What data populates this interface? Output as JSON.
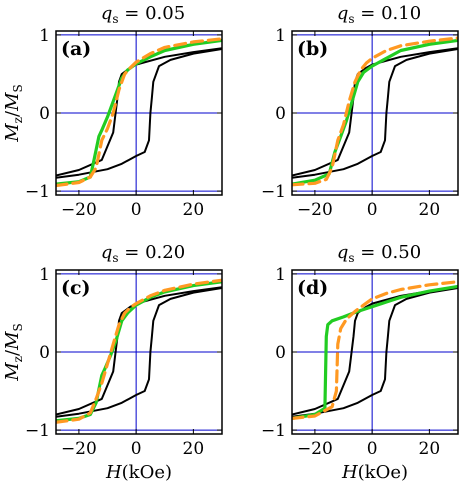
{
  "colors": {
    "frame": "#000000",
    "reference_lines": "#0000cc",
    "black_curve": "#000000",
    "green_curve": "#22cc22",
    "orange_curve": "#ff9922"
  },
  "shared": {
    "ylabel": "M_z/M_S",
    "xlabel": "H(kOe)",
    "xticks": [
      "−20",
      "0",
      "20"
    ],
    "yticks": [
      "−1",
      "0",
      "1"
    ]
  },
  "chart_data": [
    {
      "type": "line",
      "label": "(a)",
      "title": "q_s = 0.05",
      "q_s": "0.05",
      "xlim": [
        -28,
        30
      ],
      "ylim": [
        -1.05,
        1.05
      ],
      "grid": false,
      "reference_lines": {
        "y": [
          0,
          1,
          -1
        ],
        "x": [
          0
        ]
      },
      "series": [
        {
          "color": "black",
          "style": "solid",
          "x": [
            -28,
            -20,
            -12,
            -8,
            -6.5,
            -6,
            -5,
            -2,
            0,
            10,
            20,
            30
          ],
          "y": [
            -0.8,
            -0.73,
            -0.6,
            -0.25,
            0.2,
            0.4,
            0.5,
            0.58,
            0.62,
            0.72,
            0.78,
            0.83
          ]
        },
        {
          "color": "black",
          "style": "solid",
          "x": [
            -28,
            -20,
            -10,
            -5,
            0,
            3,
            4.5,
            5,
            5.5,
            6,
            8,
            12,
            20,
            30
          ],
          "y": [
            -0.83,
            -0.79,
            -0.72,
            -0.65,
            -0.55,
            -0.5,
            -0.35,
            0,
            0.2,
            0.4,
            0.6,
            0.68,
            0.76,
            0.82
          ]
        },
        {
          "color": "green",
          "style": "solid",
          "x": [
            -28,
            -20,
            -16,
            -15,
            -13,
            -12,
            -10,
            -7,
            -5,
            -3,
            0,
            5,
            10,
            20,
            30
          ],
          "y": [
            -0.91,
            -0.88,
            -0.82,
            -0.65,
            -0.3,
            -0.22,
            -0.05,
            0.25,
            0.45,
            0.55,
            0.63,
            0.72,
            0.8,
            0.88,
            0.93
          ]
        },
        {
          "color": "orange",
          "style": "dashed",
          "x": [
            -28,
            -20,
            -16,
            -14,
            -12,
            -10,
            -8,
            -6,
            -4,
            -2,
            0,
            5,
            10,
            20,
            30
          ],
          "y": [
            -0.93,
            -0.89,
            -0.82,
            -0.7,
            -0.35,
            -0.2,
            0.0,
            0.3,
            0.5,
            0.58,
            0.65,
            0.76,
            0.84,
            0.91,
            0.95
          ]
        }
      ]
    },
    {
      "type": "line",
      "label": "(b)",
      "title": "q_s = 0.10",
      "q_s": "0.10",
      "xlim": [
        -28,
        30
      ],
      "ylim": [
        -1.05,
        1.05
      ],
      "grid": false,
      "reference_lines": {
        "y": [
          0,
          1,
          -1
        ],
        "x": [
          0
        ]
      },
      "series": [
        {
          "color": "black",
          "style": "solid",
          "x": [
            -28,
            -20,
            -12,
            -8,
            -6.5,
            -6,
            -5,
            -2,
            0,
            10,
            20,
            30
          ],
          "y": [
            -0.8,
            -0.73,
            -0.6,
            -0.25,
            0.2,
            0.4,
            0.5,
            0.58,
            0.62,
            0.72,
            0.78,
            0.83
          ]
        },
        {
          "color": "black",
          "style": "solid",
          "x": [
            -28,
            -20,
            -10,
            -5,
            0,
            3,
            4.5,
            5,
            5.5,
            6,
            8,
            12,
            20,
            30
          ],
          "y": [
            -0.83,
            -0.79,
            -0.72,
            -0.65,
            -0.55,
            -0.5,
            -0.35,
            0,
            0.2,
            0.4,
            0.6,
            0.68,
            0.76,
            0.82
          ]
        },
        {
          "color": "green",
          "style": "solid",
          "x": [
            -28,
            -20,
            -15,
            -13,
            -11,
            -9,
            -7,
            -5,
            -3,
            0,
            5,
            10,
            20,
            30
          ],
          "y": [
            -0.91,
            -0.86,
            -0.78,
            -0.5,
            -0.3,
            -0.1,
            0.15,
            0.4,
            0.52,
            0.6,
            0.7,
            0.8,
            0.88,
            0.93
          ]
        },
        {
          "color": "orange",
          "style": "dashed",
          "x": [
            -28,
            -20,
            -16,
            -14,
            -12,
            -10,
            -8,
            -6,
            -4,
            -2,
            0,
            5,
            10,
            20,
            30
          ],
          "y": [
            -0.92,
            -0.9,
            -0.85,
            -0.7,
            -0.35,
            -0.15,
            0.15,
            0.4,
            0.55,
            0.64,
            0.7,
            0.8,
            0.86,
            0.92,
            0.96
          ]
        }
      ]
    },
    {
      "type": "line",
      "label": "(c)",
      "title": "q_s = 0.20",
      "q_s": "0.20",
      "xlim": [
        -28,
        30
      ],
      "ylim": [
        -1.05,
        1.05
      ],
      "grid": false,
      "reference_lines": {
        "y": [
          0,
          1,
          -1
        ],
        "x": [
          0
        ]
      },
      "series": [
        {
          "color": "black",
          "style": "solid",
          "x": [
            -28,
            -20,
            -12,
            -8,
            -6.5,
            -6,
            -5,
            -2,
            0,
            10,
            20,
            30
          ],
          "y": [
            -0.8,
            -0.73,
            -0.6,
            -0.25,
            0.2,
            0.4,
            0.5,
            0.58,
            0.62,
            0.72,
            0.78,
            0.83
          ]
        },
        {
          "color": "black",
          "style": "solid",
          "x": [
            -28,
            -20,
            -10,
            -5,
            0,
            3,
            4.5,
            5,
            5.5,
            6,
            8,
            12,
            20,
            30
          ],
          "y": [
            -0.83,
            -0.79,
            -0.72,
            -0.65,
            -0.55,
            -0.5,
            -0.35,
            0,
            0.2,
            0.4,
            0.6,
            0.68,
            0.76,
            0.82
          ]
        },
        {
          "color": "green",
          "style": "solid",
          "x": [
            -28,
            -20,
            -16,
            -14,
            -12,
            -11,
            -9,
            -7,
            -5,
            -3,
            0,
            5,
            10,
            20,
            30
          ],
          "y": [
            -0.88,
            -0.85,
            -0.8,
            -0.65,
            -0.3,
            -0.22,
            -0.05,
            0.15,
            0.4,
            0.5,
            0.6,
            0.7,
            0.77,
            0.85,
            0.9
          ]
        },
        {
          "color": "orange",
          "style": "dashed",
          "x": [
            -28,
            -20,
            -16,
            -14,
            -12,
            -10,
            -8,
            -6,
            -4,
            -2,
            0,
            5,
            10,
            20,
            30
          ],
          "y": [
            -0.9,
            -0.86,
            -0.78,
            -0.6,
            -0.4,
            -0.15,
            0.1,
            0.35,
            0.5,
            0.57,
            0.62,
            0.72,
            0.79,
            0.87,
            0.92
          ]
        }
      ]
    },
    {
      "type": "line",
      "label": "(d)",
      "title": "q_s = 0.50",
      "q_s": "0.50",
      "xlim": [
        -28,
        30
      ],
      "ylim": [
        -1.05,
        1.05
      ],
      "grid": false,
      "reference_lines": {
        "y": [
          0,
          1,
          -1
        ],
        "x": [
          0
        ]
      },
      "series": [
        {
          "color": "black",
          "style": "solid",
          "x": [
            -28,
            -20,
            -12,
            -8,
            -6.5,
            -6,
            -5,
            -2,
            0,
            10,
            20,
            30
          ],
          "y": [
            -0.8,
            -0.73,
            -0.6,
            -0.25,
            0.2,
            0.4,
            0.5,
            0.58,
            0.62,
            0.72,
            0.78,
            0.83
          ]
        },
        {
          "color": "black",
          "style": "solid",
          "x": [
            -28,
            -20,
            -10,
            -5,
            0,
            3,
            4.5,
            5,
            5.5,
            6,
            8,
            12,
            20,
            30
          ],
          "y": [
            -0.83,
            -0.79,
            -0.72,
            -0.65,
            -0.55,
            -0.5,
            -0.35,
            0,
            0.2,
            0.4,
            0.6,
            0.68,
            0.76,
            0.82
          ]
        },
        {
          "color": "green",
          "style": "solid",
          "x": [
            -28,
            -20,
            -16.5,
            -16,
            -15.5,
            -14,
            -10,
            -5,
            0,
            5,
            10,
            20,
            30
          ],
          "y": [
            -0.85,
            -0.8,
            -0.72,
            0.2,
            0.35,
            0.4,
            0.45,
            0.52,
            0.58,
            0.64,
            0.7,
            0.78,
            0.84
          ]
        },
        {
          "color": "orange",
          "style": "dashed",
          "x": [
            -28,
            -20,
            -14,
            -12.5,
            -12,
            -11,
            -9,
            -6,
            -3,
            0,
            5,
            10,
            20,
            30
          ],
          "y": [
            -0.85,
            -0.82,
            -0.7,
            -0.5,
            0.1,
            0.3,
            0.42,
            0.52,
            0.6,
            0.68,
            0.75,
            0.8,
            0.86,
            0.9
          ]
        }
      ]
    }
  ]
}
